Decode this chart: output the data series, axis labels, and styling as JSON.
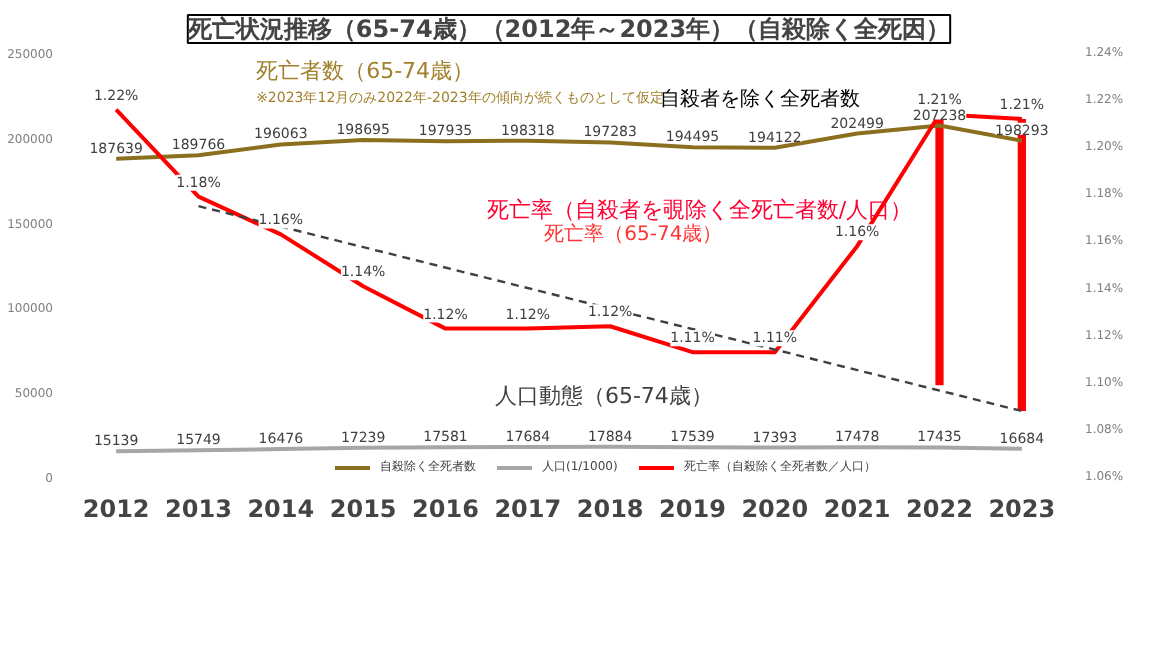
{
  "chart_data": {
    "type": "line",
    "title": "死亡状況推移（65-74歳）（2012年～2023年）（自殺除く全死因）",
    "categories": [
      "2012",
      "2013",
      "2014",
      "2015",
      "2016",
      "2017",
      "2018",
      "2019",
      "2020",
      "2021",
      "2022",
      "2023"
    ],
    "ylim": [
      0,
      250000
    ],
    "yticks": [
      {
        "value": 0,
        "label": "0"
      },
      50000,
      100000,
      150000,
      200000,
      250000
    ],
    "y2lim": [
      1.06,
      1.24
    ],
    "y2ticks": [
      {
        "value": 1.06,
        "label": "1.06%"
      },
      {
        "value": 1.08,
        "label": "1.08%"
      },
      {
        "value": 1.1,
        "label": "1.10%"
      },
      {
        "value": 1.12,
        "label": "1.12%"
      },
      {
        "value": 1.14,
        "label": "1.14%"
      },
      {
        "value": 1.16,
        "label": "1.16%"
      },
      {
        "value": 1.18,
        "label": "1.18%"
      },
      {
        "value": 1.2,
        "label": "1.20%"
      },
      {
        "value": 1.22,
        "label": "1.22%"
      },
      {
        "value": 1.24,
        "label": "1.24%"
      }
    ],
    "series": [
      {
        "name": "自殺除く全死者数",
        "color": "#8b6f1e",
        "values": [
          187639,
          189766,
          196063,
          198695,
          197935,
          198318,
          197283,
          194495,
          194122,
          202499,
          207238,
          198293
        ],
        "value_labels": [
          "187639",
          "189766",
          "196063",
          "198695",
          "197935",
          "198318",
          "197283",
          "194495",
          "194122",
          "202499",
          "207238",
          "198293"
        ]
      },
      {
        "name": "人口(1/1000)",
        "color": "#a6a6a6",
        "values": [
          15139,
          15749,
          16476,
          17239,
          17581,
          17684,
          17884,
          17539,
          17393,
          17478,
          17435,
          16684
        ],
        "value_labels": [
          "15139",
          "15749",
          "16476",
          "17239",
          "17581",
          "17684",
          "17884",
          "17539",
          "17393",
          "17478",
          "17435",
          "16684"
        ]
      },
      {
        "name": "死亡率（自殺除く全死者数／人口）",
        "color": "#ff0000",
        "axis": "y2",
        "values": [
          1.216,
          1.179,
          1.163,
          1.141,
          1.123,
          1.123,
          1.124,
          1.113,
          1.113,
          1.158,
          1.214,
          1.212
        ],
        "value_labels": [
          "1.22%",
          "1.18%",
          "1.16%",
          "1.14%",
          "1.12%",
          "1.12%",
          "1.12%",
          "1.11%",
          "1.11%",
          "1.16%",
          "1.21%",
          "1.21%"
        ]
      },
      {
        "type": "bar",
        "color": "#ff0000",
        "axis": "y2",
        "values": [
          null,
          null,
          null,
          null,
          null,
          null,
          null,
          null,
          null,
          null,
          0.115,
          0.124
        ],
        "base": [
          null,
          null,
          null,
          null,
          null,
          null,
          null,
          null,
          null,
          null,
          1.099,
          1.088
        ]
      },
      {
        "color": "#404040",
        "axis": "y2",
        "line_style": "dashed",
        "values": [
          null,
          1.175,
          null,
          null,
          null,
          null,
          null,
          null,
          null,
          null,
          null,
          1.088
        ]
      }
    ],
    "annotations": [
      "死亡者数（65-74歳）",
      "※2023年12月のみ2022年-2023年の傾向が続くものとして仮定",
      "自殺者を除く全死者数",
      "死亡率（自殺者を覗除く全死亡者数/人口）",
      "死亡率（65-74歳）",
      "人口動態（65-74歳）"
    ],
    "legend": "bottom",
    "grid": false,
    "line_style": "solid"
  }
}
